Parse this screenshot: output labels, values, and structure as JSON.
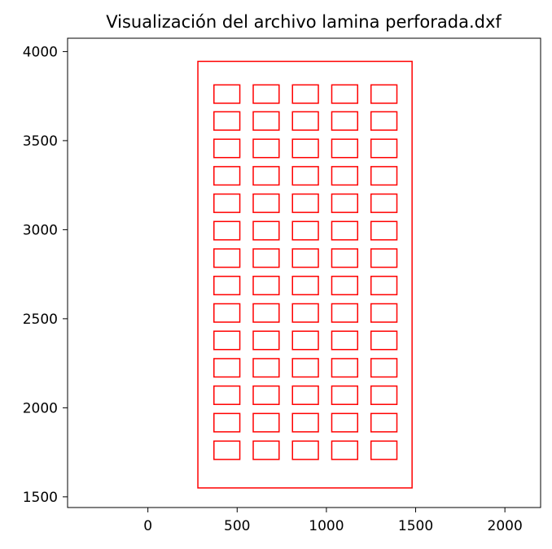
{
  "chart_data": {
    "type": "scatter",
    "title": "Visualización del archivo lamina perforada.dxf",
    "xlabel": "",
    "ylabel": "",
    "xlim": [
      -450,
      2200
    ],
    "ylim": [
      1440,
      4075
    ],
    "grid": false,
    "line_color": "#ff0000",
    "x_ticks": [
      0,
      500,
      1000,
      1500,
      2000
    ],
    "y_ticks": [
      1500,
      2000,
      2500,
      3000,
      3500,
      4000
    ],
    "outer_rectangle": {
      "x0": 280,
      "y0": 1550,
      "x1": 1480,
      "y1": 3945
    },
    "hole_size": {
      "width": 145,
      "height": 103
    },
    "hole_columns_x": [
      370,
      590,
      810,
      1030,
      1250
    ],
    "hole_rows_y": [
      1710,
      1865,
      2019,
      2173,
      2327,
      2481,
      2635,
      2789,
      2943,
      3097,
      3251,
      3405,
      3559,
      3710
    ]
  }
}
